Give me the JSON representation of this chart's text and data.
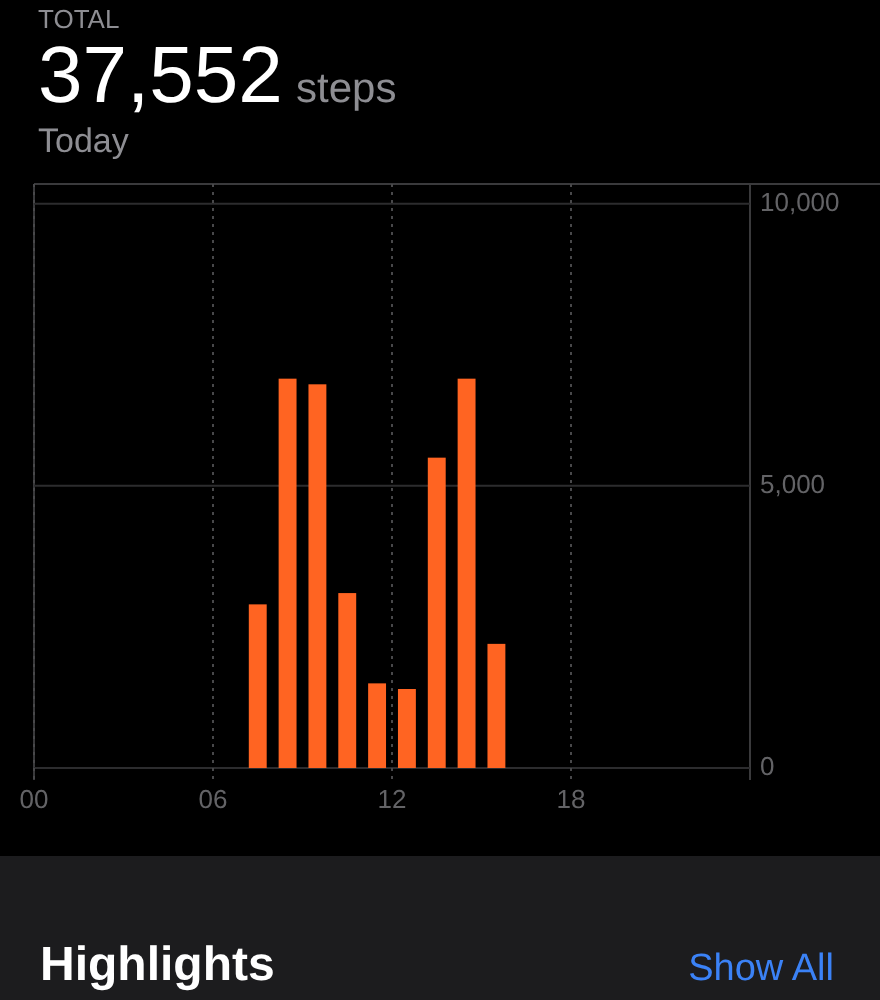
{
  "chart_data": {
    "type": "bar",
    "title": "TOTAL",
    "subtitle": "Today",
    "annotations": [
      "37,552",
      "steps",
      "Highlights",
      "Show All"
    ],
    "x": [
      7.5,
      8.5,
      9.5,
      10.5,
      11.5,
      12.5,
      13.5,
      14.5,
      15.5
    ],
    "values": [
      2900,
      6900,
      6800,
      3100,
      1500,
      1400,
      5500,
      6900,
      2200
    ],
    "color": "#ff6422",
    "xlim": [
      0,
      24
    ],
    "xticks": [
      {
        "value": 0,
        "label": "00"
      },
      {
        "value": 6,
        "label": "06"
      },
      {
        "value": 12,
        "label": "12"
      },
      {
        "value": 18,
        "label": "18"
      }
    ],
    "ylim": [
      0,
      10350
    ],
    "yticks": [
      0,
      {
        "value": 5000,
        "label": "5,000"
      },
      {
        "value": 10000,
        "label": "10,000"
      }
    ],
    "grid": true
  }
}
